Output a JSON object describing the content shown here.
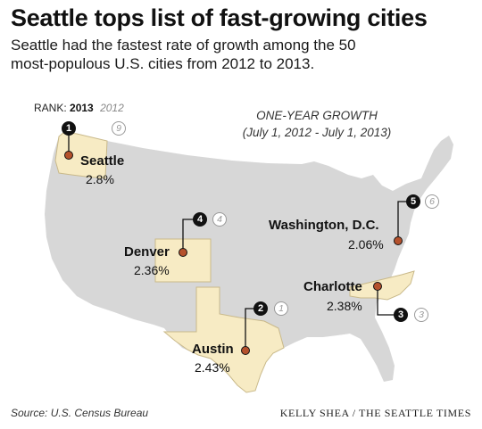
{
  "header": {
    "title": "Seattle tops list of fast-growing cities",
    "subtitle_line1": "Seattle had the fastest rate of growth among the 50",
    "subtitle_line2": "most-populous U.S. cities from 2012 to 2013."
  },
  "legend": {
    "label": "RANK:",
    "year_current": "2013",
    "year_previous": "2012"
  },
  "growth_heading": {
    "line1": "ONE-YEAR GROWTH",
    "line2": "(July 1, 2012 - July 1, 2013)"
  },
  "cities": [
    {
      "id": "seattle",
      "name": "Seattle",
      "growth": "2.8%",
      "rank_2013": "1",
      "rank_2012": "9"
    },
    {
      "id": "austin",
      "name": "Austin",
      "growth": "2.43%",
      "rank_2013": "2",
      "rank_2012": "1"
    },
    {
      "id": "charlotte",
      "name": "Charlotte",
      "growth": "2.38%",
      "rank_2013": "3",
      "rank_2012": "3"
    },
    {
      "id": "denver",
      "name": "Denver",
      "growth": "2.36%",
      "rank_2013": "4",
      "rank_2012": "4"
    },
    {
      "id": "washington",
      "name": "Washington, D.C.",
      "growth": "2.06%",
      "rank_2013": "5",
      "rank_2012": "6"
    }
  ],
  "footer": {
    "source": "Source: U.S. Census Bureau",
    "credit": "KELLY SHEA / THE SEATTLE TIMES"
  },
  "colors": {
    "land": "#d7d7d7",
    "highlight_state": "#f7ebc4",
    "state_border": "#c9b98a",
    "city_dot": "#b5512c",
    "badge": "#111111"
  }
}
